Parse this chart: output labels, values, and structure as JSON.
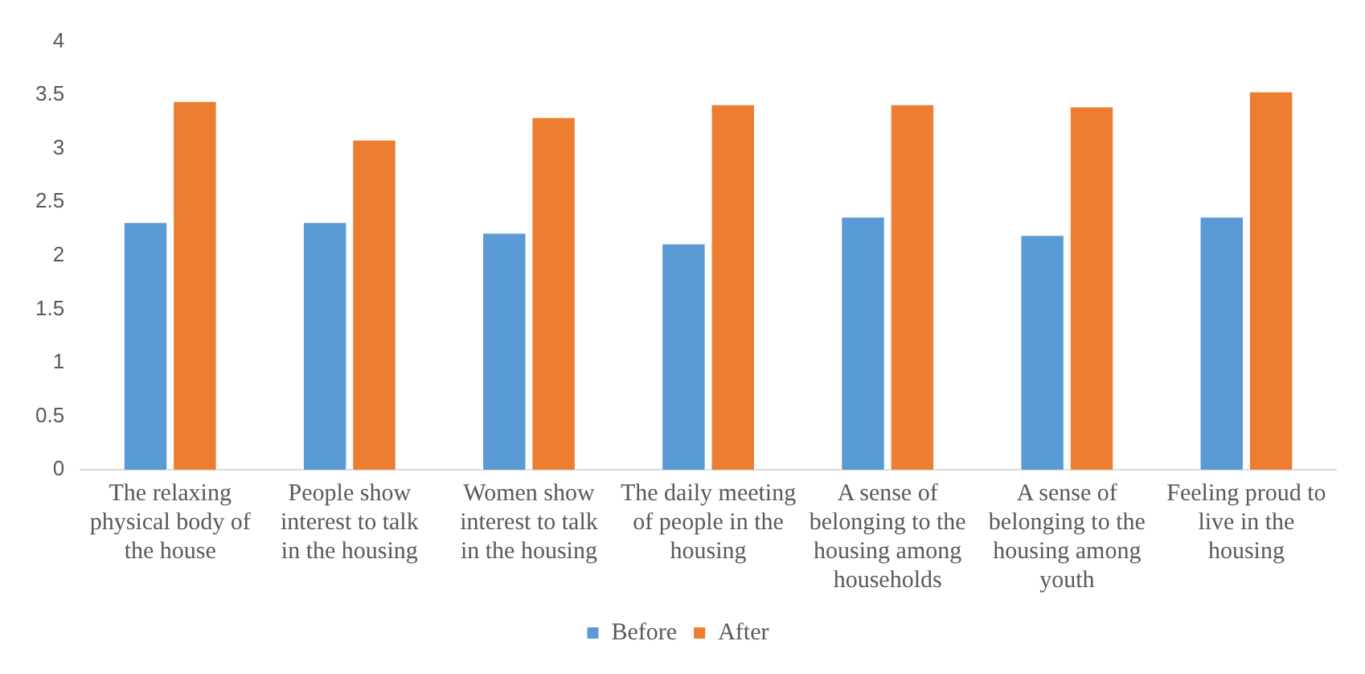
{
  "chart_data": {
    "type": "bar",
    "categories": [
      "The relaxing physical body of the house",
      "People show interest to talk in the housing",
      "Women show interest to talk in the housing",
      "The daily meeting of people in the housing",
      "A sense of belonging to the housing among households",
      "A sense of belonging to the housing among youth",
      "Feeling proud to live in the housing"
    ],
    "series": [
      {
        "name": "Before",
        "color": "#5b9bd5",
        "values": [
          2.32,
          2.32,
          2.22,
          2.12,
          2.37,
          2.2,
          2.37
        ]
      },
      {
        "name": "After",
        "color": "#ed7d31",
        "values": [
          3.45,
          3.09,
          3.3,
          3.42,
          3.42,
          3.4,
          3.54
        ]
      }
    ],
    "ylim": [
      0,
      4
    ],
    "yticks": [
      0,
      0.5,
      1,
      1.5,
      2,
      2.5,
      3,
      3.5,
      4
    ],
    "grid": false,
    "legend": "bottom"
  }
}
